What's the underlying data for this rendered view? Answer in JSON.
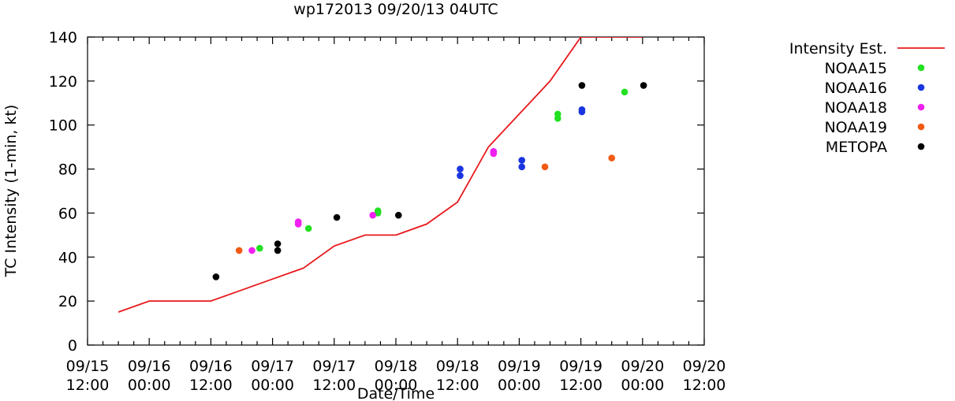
{
  "chart_data": {
    "type": "scatter",
    "title": "wp172013 09/20/13 04UTC",
    "xlabel": "Date/Time",
    "ylabel": "TC Intensity (1-min, kt)",
    "ylim": [
      0,
      140
    ],
    "yticks": [
      0,
      20,
      40,
      60,
      80,
      100,
      120,
      140
    ],
    "xlim_hours": [
      0,
      120
    ],
    "xticks": [
      {
        "hour": 0,
        "line1": "09/15",
        "line2": "12:00"
      },
      {
        "hour": 12,
        "line1": "09/16",
        "line2": "00:00"
      },
      {
        "hour": 24,
        "line1": "09/16",
        "line2": "12:00"
      },
      {
        "hour": 36,
        "line1": "09/17",
        "line2": "00:00"
      },
      {
        "hour": 48,
        "line1": "09/17",
        "line2": "12:00"
      },
      {
        "hour": 60,
        "line1": "09/18",
        "line2": "00:00"
      },
      {
        "hour": 72,
        "line1": "09/18",
        "line2": "12:00"
      },
      {
        "hour": 84,
        "line1": "09/19",
        "line2": "00:00"
      },
      {
        "hour": 96,
        "line1": "09/19",
        "line2": "12:00"
      },
      {
        "hour": 108,
        "line1": "09/20",
        "line2": "00:00"
      },
      {
        "hour": 120,
        "line1": "09/20",
        "line2": "12:00"
      }
    ],
    "legend_position": "right",
    "series": [
      {
        "name": "Intensity Est.",
        "kind": "line",
        "color": "#e8191c",
        "points": [
          [
            6,
            15
          ],
          [
            12,
            20
          ],
          [
            24,
            20
          ],
          [
            30,
            25
          ],
          [
            36,
            30
          ],
          [
            42,
            35
          ],
          [
            48,
            45
          ],
          [
            54,
            50
          ],
          [
            60,
            50
          ],
          [
            66,
            55
          ],
          [
            72,
            65
          ],
          [
            78,
            90
          ],
          [
            84,
            105
          ],
          [
            90,
            120
          ],
          [
            96,
            140
          ],
          [
            108,
            140
          ]
        ]
      },
      {
        "name": "NOAA15",
        "kind": "points",
        "color": "#22e022",
        "points": [
          [
            33.5,
            44
          ],
          [
            43,
            53
          ],
          [
            56.5,
            60
          ],
          [
            56.5,
            61
          ],
          [
            91.5,
            103
          ],
          [
            91.5,
            105
          ],
          [
            104.5,
            115
          ]
        ]
      },
      {
        "name": "NOAA16",
        "kind": "points",
        "color": "#1a35e0",
        "points": [
          [
            72.5,
            77
          ],
          [
            72.5,
            80
          ],
          [
            84.5,
            81
          ],
          [
            84.5,
            84
          ],
          [
            96.2,
            106
          ],
          [
            96.2,
            107
          ]
        ]
      },
      {
        "name": "NOAA18",
        "kind": "points",
        "color": "#f020f0",
        "points": [
          [
            32,
            43
          ],
          [
            41,
            55
          ],
          [
            41,
            56
          ],
          [
            55.5,
            59
          ],
          [
            79,
            87
          ],
          [
            79,
            88
          ]
        ]
      },
      {
        "name": "NOAA19",
        "kind": "points",
        "color": "#f05a14",
        "points": [
          [
            29.5,
            43
          ],
          [
            89,
            81
          ],
          [
            102,
            85
          ]
        ]
      },
      {
        "name": "METOPA",
        "kind": "points",
        "color": "#000000",
        "points": [
          [
            25,
            31
          ],
          [
            37,
            43
          ],
          [
            37,
            46
          ],
          [
            48.5,
            58
          ],
          [
            60.5,
            59
          ],
          [
            96.2,
            118
          ],
          [
            108.2,
            118
          ]
        ]
      }
    ]
  }
}
